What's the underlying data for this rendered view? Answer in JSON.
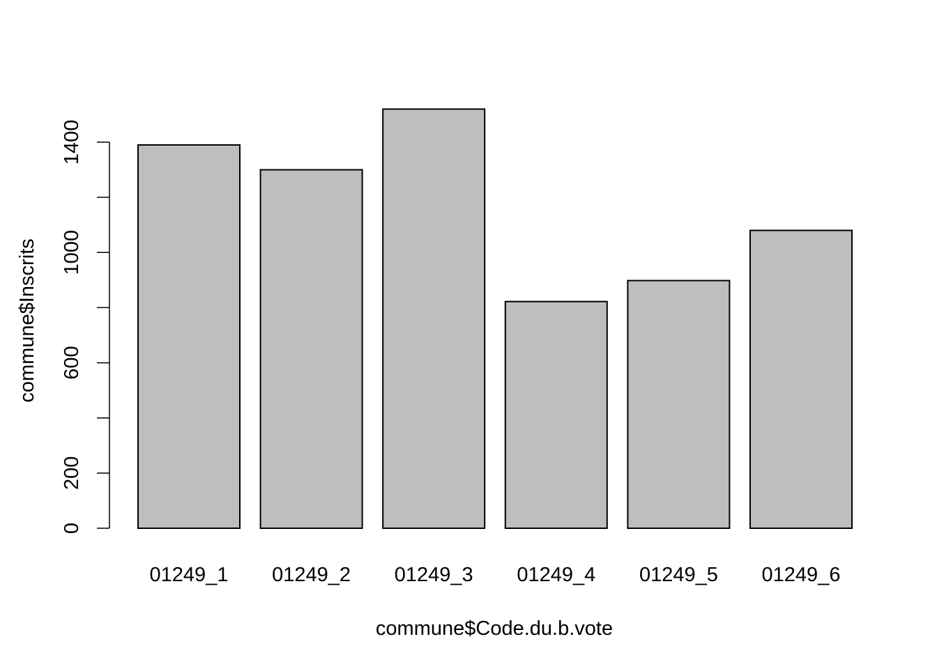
{
  "chart_data": {
    "type": "bar",
    "title": "",
    "xlabel": "commune$Code.du.b.vote",
    "ylabel": "commune$Inscrits",
    "categories": [
      "01249_1",
      "01249_2",
      "01249_3",
      "01249_4",
      "01249_5",
      "01249_6"
    ],
    "values": [
      1390,
      1300,
      1520,
      822,
      898,
      1080
    ],
    "ylim": [
      0,
      1520
    ],
    "yticks": [
      0,
      200,
      400,
      600,
      800,
      1000,
      1200,
      1400
    ],
    "ytick_labels": [
      "0",
      "200",
      "",
      "600",
      "",
      "1000",
      "",
      "1400"
    ],
    "bar_fill": "#bebebe",
    "bar_stroke": "#000000",
    "grid": false,
    "legend": "none"
  }
}
